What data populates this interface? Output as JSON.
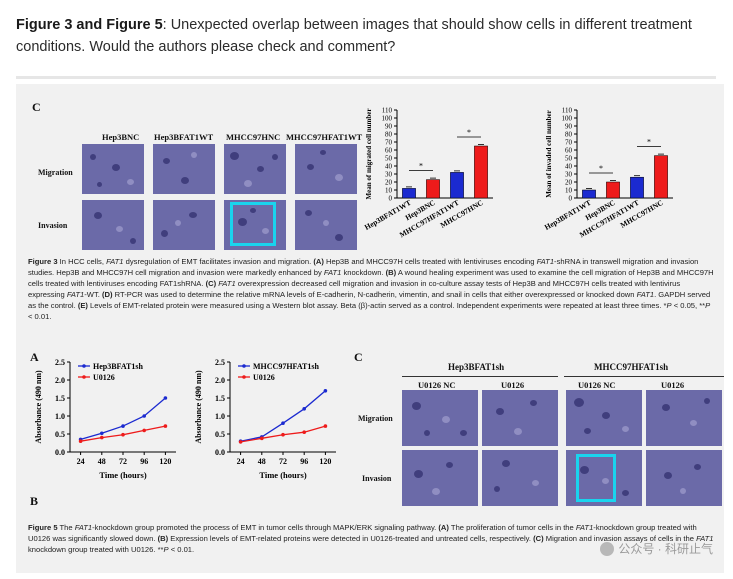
{
  "heading": {
    "bold": "Figure 3 and Figure 5",
    "text": ": Unexpected overlap between images that should show cells in different treatment conditions. Would the authors please check and comment?"
  },
  "fig3": {
    "panel_label": "C",
    "col_headers": [
      "Hep3BNC",
      "Hep3BFAT1WT",
      "MHCC97HNC",
      "MHCC97HFAT1WT"
    ],
    "row_headers": [
      "Migration",
      "Invasion"
    ],
    "caption_parts": {
      "p1": "Figure 3",
      "p2": " In HCC cells, ",
      "p3": "FAT1",
      "p4": " dysregulation of EMT facilitates invasion and migration. ",
      "p5": "(A)",
      "p6": " Hep3B and MHCC97H cells treated with lentiviruses encoding ",
      "p7": "FAT1",
      "p8": "-shRNA in transwell migration and invasion studies. Hep3B and MHCC97H cell migration and invasion were markedly enhanced by ",
      "p9": "FAT1",
      "p10": " knockdown. ",
      "p11": "(B)",
      "p12": " A wound healing experiment was used to examine the cell migration of Hep3B and MHCC97H cells treated with lentiviruses encoding FAT1shRNA. ",
      "p13": "(C)",
      "p14": " ",
      "p15": "FAT1",
      "p16": " overexpression decreased cell migration and invasion in co-culture assay tests of Hep3B and MHCC97H cells treated with lentivirus expressing ",
      "p17": "FAT1",
      "p18": "-WT. ",
      "p19": "(D)",
      "p20": " RT-PCR was used to determine the relative mRNA levels of E-cadherin, N-cadherin, vimentin, and snail in cells that either overexpressed or knocked down ",
      "p21": "FAT1",
      "p22": ". GAPDH served as the control. ",
      "p23": "(E)",
      "p24": " Levels of EMT-related protein were measured using a Western blot assay. Beta (β)-actin served as a control. Independent experiments were repeated at least three times. *",
      "p25": "P",
      "p26": " < 0.05, **",
      "p27": "P",
      "p28": " < 0.01."
    }
  },
  "fig5": {
    "panel_labels": [
      "A",
      "B",
      "C"
    ],
    "group_headers": [
      "Hep3BFAT1sh",
      "MHCC97HFAT1sh"
    ],
    "col_headers": [
      "U0126 NC",
      "U0126",
      "U0126 NC",
      "U0126"
    ],
    "row_headers": [
      "Migration",
      "Invasion"
    ],
    "caption_parts": {
      "p1": "Figure 5",
      "p2": " The ",
      "p3": "FAT1",
      "p4": "-knockdown group promoted the process of EMT in tumor cells through MAPK/ERK signaling pathway. ",
      "p5": "(A)",
      "p6": " The proliferation of tumor cells in the ",
      "p7": "FAT1",
      "p8": "-knockdown group treated with U0126 was significantly slowed down. ",
      "p9": "(B)",
      "p10": " Expression levels of EMT-related proteins were detected in U0126-treated and untreated cells, respectively. ",
      "p11": "(C)",
      "p12": " Migration and invasion assays of cells in the ",
      "p13": "FAT1",
      "p14": " knockdown group treated with U0126. **",
      "p15": "P",
      "p16": " < 0.01."
    }
  },
  "watermark": "公众号 · 科研止气",
  "chart_data": [
    {
      "type": "bar",
      "ylabel": "Mean of migrated cell number",
      "categories": [
        "Hep3BFAT1WT",
        "Hep3BNC",
        "MHCC97HFAT1WT",
        "MHCC97HNC"
      ],
      "values": [
        12,
        23,
        32,
        65
      ],
      "ylim": [
        0,
        110
      ],
      "yticks": [
        "0",
        "10",
        "20",
        "30",
        "40",
        "50",
        "60",
        "70",
        "80",
        "90",
        "100",
        "110"
      ],
      "colors": [
        "#1b2ad0",
        "#ee1b1b",
        "#1b2ad0",
        "#ee1b1b"
      ],
      "significance": [
        "*",
        "*"
      ]
    },
    {
      "type": "bar",
      "ylabel": "Mean of invaded cell number",
      "categories": [
        "Hep3BFAT1WT",
        "Hep3BNC",
        "MHCC97HFAT1WT",
        "MHCC97HNC"
      ],
      "values": [
        10,
        20,
        26,
        53
      ],
      "ylim": [
        0,
        110
      ],
      "yticks": [
        "0",
        "10",
        "20",
        "30",
        "40",
        "50",
        "60",
        "70",
        "80",
        "90",
        "100",
        "110"
      ],
      "colors": [
        "#1b2ad0",
        "#ee1b1b",
        "#1b2ad0",
        "#ee1b1b"
      ],
      "significance": [
        "*",
        "*"
      ]
    },
    {
      "type": "line",
      "xlabel": "Time (hours)",
      "ylabel": "Absorbance (490 nm)",
      "x": [
        24,
        48,
        72,
        96,
        120
      ],
      "xticks": [
        "24",
        "48",
        "72",
        "96",
        "120"
      ],
      "ylim": [
        0,
        2.5
      ],
      "yticks": [
        "0.0",
        "0.5",
        "1.0",
        "1.5",
        "2.0",
        "2.5"
      ],
      "series": [
        {
          "name": "Hep3BFAT1sh",
          "color": "#1b2ad0",
          "values": [
            0.35,
            0.52,
            0.72,
            1.0,
            1.5
          ]
        },
        {
          "name": "U0126",
          "color": "#ee1b1b",
          "values": [
            0.3,
            0.4,
            0.48,
            0.6,
            0.72
          ]
        }
      ]
    },
    {
      "type": "line",
      "xlabel": "Time (hours)",
      "ylabel": "Absorbance (490 nm)",
      "x": [
        24,
        48,
        72,
        96,
        120
      ],
      "xticks": [
        "24",
        "48",
        "72",
        "96",
        "120"
      ],
      "ylim": [
        0,
        2.5
      ],
      "yticks": [
        "0.0",
        "0.5",
        "1.0",
        "1.5",
        "2.0",
        "2.5"
      ],
      "series": [
        {
          "name": "MHCC97HFAT1sh",
          "color": "#1b2ad0",
          "values": [
            0.3,
            0.42,
            0.8,
            1.2,
            1.7
          ]
        },
        {
          "name": "U0126",
          "color": "#ee1b1b",
          "values": [
            0.28,
            0.38,
            0.48,
            0.55,
            0.72
          ]
        }
      ]
    }
  ]
}
